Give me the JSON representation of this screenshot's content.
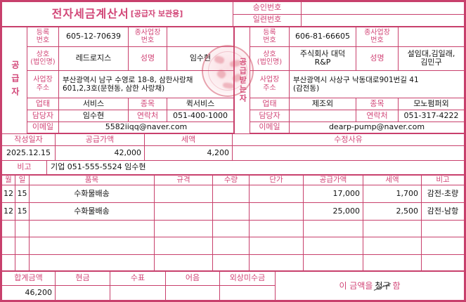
{
  "invoice": {
    "title": "전자세금계산서",
    "title_suffix": "[공급자 보관용]",
    "approval": {
      "label": "승인번호",
      "value": ""
    },
    "serial": {
      "label": "일련번호",
      "value": ""
    },
    "supplier": {
      "side_label": "공급자",
      "reg_no_label": "등록\n번호",
      "reg_no": "605-12-70639",
      "sub_biz_label": "종사업장\n번호",
      "sub_biz": "",
      "company_label": "상호\n(법인명)",
      "company": "레드로지스",
      "ceo_label": "성명",
      "ceo": "임수현",
      "address_label": "사업장\n주소",
      "address": "부산광역시 남구 수영로 18-8, 삼한사랑채\n601,2,3호(문현동, 삼한 사랑채)",
      "biz_type_label": "업태",
      "biz_type": "서비스",
      "biz_item_label": "종목",
      "biz_item": "퀵서비스",
      "manager_label": "담당자",
      "manager": "임수현",
      "contact_label": "연락처",
      "contact": "051-400-1000",
      "email_label": "이메일",
      "email": "5582iiqq@naver.com"
    },
    "buyer": {
      "side_label": "공급받는자",
      "reg_no_label": "등록\n번호",
      "reg_no": "606-81-66605",
      "sub_biz_label": "종사업장\n번호",
      "sub_biz": "",
      "company_label": "상호\n(법인명)",
      "company": "주식회사 대덕\nR&P",
      "ceo_label": "성명",
      "ceo": "설임대,김일래,\n김민구",
      "address_label": "사업장\n주소",
      "address": "부산광역시 사상구 낙동대로901번길 41\n(감전동)",
      "biz_type_label": "업태",
      "biz_type": "제조외",
      "biz_item_label": "종목",
      "biz_item": "모노펌퍼외",
      "manager_label": "담당자",
      "manager": "",
      "contact_label": "연락처",
      "contact": "051-317-4222",
      "email_label": "이메일",
      "email": "dearp-pump@naver.com"
    },
    "summary": {
      "date_label": "작성일자",
      "date": "2025.12.15",
      "supply_label": "공급가액",
      "supply": "42,000",
      "tax_label": "세액",
      "tax": "4,200",
      "revision_label": "수정사유",
      "revision": "",
      "note_label": "비고",
      "note": "기업 051-555-5524 임수현"
    },
    "items": {
      "headers": {
        "month": "월",
        "day": "일",
        "name": "품목",
        "spec": "규격",
        "qty": "수량",
        "unit_price": "단가",
        "supply": "공급가액",
        "tax": "세액",
        "note": "비고"
      },
      "rows": [
        {
          "month": "12",
          "day": "15",
          "name": "수화물배송",
          "spec": "",
          "qty": "",
          "unit_price": "",
          "supply": "17,000",
          "tax": "1,700",
          "note": "감전-초량"
        },
        {
          "month": "12",
          "day": "15",
          "name": "수화물배송",
          "spec": "",
          "qty": "",
          "unit_price": "",
          "supply": "25,000",
          "tax": "2,500",
          "note": "감전-남항"
        },
        {
          "month": "",
          "day": "",
          "name": "",
          "spec": "",
          "qty": "",
          "unit_price": "",
          "supply": "",
          "tax": "",
          "note": ""
        },
        {
          "month": "",
          "day": "",
          "name": "",
          "spec": "",
          "qty": "",
          "unit_price": "",
          "supply": "",
          "tax": "",
          "note": ""
        },
        {
          "month": "",
          "day": "",
          "name": "",
          "spec": "",
          "qty": "",
          "unit_price": "",
          "supply": "",
          "tax": "",
          "note": ""
        }
      ]
    },
    "totals": {
      "total_label": "합계금액",
      "total": "46,200",
      "cash_label": "현금",
      "cash": "",
      "check_label": "수표",
      "check": "",
      "bill_label": "어음",
      "bill": "",
      "receivable_label": "외상미수금",
      "receivable": "",
      "footer_prefix": "이 금액을",
      "footer_marked": "청구",
      "footer_suffix": "함"
    },
    "colors": {
      "line": "#c8406c",
      "label_text": "#d24677",
      "value_text": "#111111",
      "seal": "#d06a7e"
    }
  }
}
